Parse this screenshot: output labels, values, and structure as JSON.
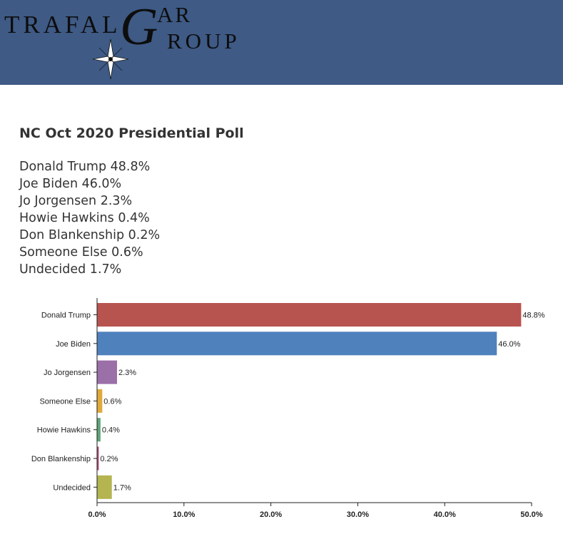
{
  "header": {
    "logo_text": "TRAFALGAR GROUP",
    "logo_parts": {
      "trafal": "TRAFAL",
      "g": "G",
      "ar": "AR",
      "roup": "ROUP"
    },
    "background_color": "#3e5a85"
  },
  "page": {
    "title": "NC Oct 2020 Presidential Poll",
    "results": [
      "Donald Trump 48.8%",
      "Joe Biden 46.0%",
      "Jo Jorgensen 2.3%",
      "Howie Hawkins 0.4%",
      "Don Blankenship 0.2%",
      "Someone Else 0.6%",
      "Undecided 1.7%"
    ]
  },
  "chart_data": {
    "type": "bar",
    "orientation": "horizontal",
    "categories": [
      "Donald Trump",
      "Joe Biden",
      "Jo Jorgensen",
      "Someone Else",
      "Howie Hawkins",
      "Don Blankenship",
      "Undecided"
    ],
    "values": [
      48.8,
      46.0,
      2.3,
      0.6,
      0.4,
      0.2,
      1.7
    ],
    "data_labels": [
      "48.8%",
      "46.0%",
      "2.3%",
      "0.6%",
      "0.4%",
      "0.2%",
      "1.7%"
    ],
    "colors": [
      "#b85450",
      "#4f81bd",
      "#9b6fa8",
      "#e0a93a",
      "#5fa577",
      "#b34b78",
      "#b4b450"
    ],
    "xlim": [
      0,
      50
    ],
    "xticks": [
      0,
      10,
      20,
      30,
      40,
      50
    ],
    "xtick_labels": [
      "0.0%",
      "10.0%",
      "20.0%",
      "30.0%",
      "40.0%",
      "50.0%"
    ],
    "grid": false,
    "title": "",
    "xlabel": "",
    "ylabel": ""
  }
}
